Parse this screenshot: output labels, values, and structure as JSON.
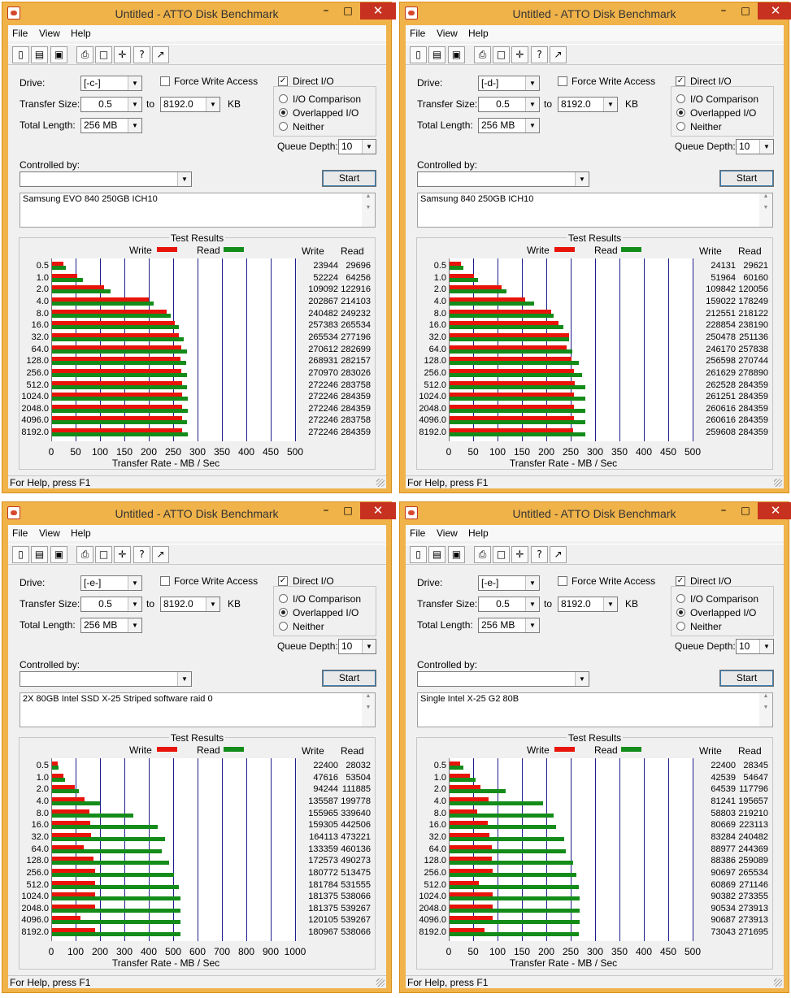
{
  "windows": [
    {
      "title": "Untitled - ATTO Disk Benchmark",
      "menu": [
        "File",
        "View",
        "Help"
      ],
      "drive_label": "Drive:",
      "drive": "[-c-]",
      "force_write_label": "Force Write Access",
      "direct_io_label": "Direct I/O",
      "transfer_size_label": "Transfer Size:",
      "transfer_from": "0.5",
      "transfer_to_label": "to",
      "transfer_to": "8192.0",
      "transfer_unit": "KB",
      "total_length_label": "Total Length:",
      "total_length": "256 MB",
      "io_comparison_label": "I/O Comparison",
      "overlapped_label": "Overlapped I/O",
      "neither_label": "Neither",
      "queue_depth_label": "Queue Depth:",
      "queue_depth": "10",
      "controlled_by_label": "Controlled by:",
      "controlled_by": "",
      "start_label": "Start",
      "notes": "Samsung EVO 840 250GB ICH10",
      "results_title": "Test Results",
      "legend_write": "Write",
      "legend_read": "Read",
      "col_write": "Write",
      "col_read": "Read",
      "xlabel": "Transfer Rate - MB / Sec",
      "status": "For Help, press F1",
      "chart_data": {
        "type": "bar",
        "title": "Test Results",
        "xlabel": "Transfer Rate - MB / Sec",
        "xlim": [
          0,
          500
        ],
        "xticks": [
          "0",
          "50",
          "100",
          "150",
          "200",
          "250",
          "300",
          "350",
          "400",
          "450",
          "500"
        ],
        "categories": [
          "0.5",
          "1.0",
          "2.0",
          "4.0",
          "8.0",
          "16.0",
          "32.0",
          "64.0",
          "128.0",
          "256.0",
          "512.0",
          "1024.0",
          "2048.0",
          "4096.0",
          "8192.0"
        ],
        "series": [
          {
            "name": "Write",
            "color": "#e8140a",
            "values": [
              23944,
              52224,
              109092,
              202867,
              240482,
              257383,
              265534,
              270612,
              268931,
              270970,
              272246,
              272246,
              272246,
              272246,
              272246
            ]
          },
          {
            "name": "Read",
            "color": "#148c1a",
            "values": [
              29696,
              64256,
              122916,
              214103,
              249232,
              265534,
              277196,
              282699,
              282157,
              283026,
              283758,
              284359,
              284359,
              283758,
              284359
            ]
          }
        ]
      }
    },
    {
      "title": "Untitled - ATTO Disk Benchmark",
      "menu": [
        "File",
        "View",
        "Help"
      ],
      "drive_label": "Drive:",
      "drive": "[-d-]",
      "force_write_label": "Force Write Access",
      "direct_io_label": "Direct I/O",
      "transfer_size_label": "Transfer Size:",
      "transfer_from": "0.5",
      "transfer_to_label": "to",
      "transfer_to": "8192.0",
      "transfer_unit": "KB",
      "total_length_label": "Total Length:",
      "total_length": "256 MB",
      "io_comparison_label": "I/O Comparison",
      "overlapped_label": "Overlapped I/O",
      "neither_label": "Neither",
      "queue_depth_label": "Queue Depth:",
      "queue_depth": "10",
      "controlled_by_label": "Controlled by:",
      "controlled_by": "",
      "start_label": "Start",
      "notes": "Samsung 840 250GB ICH10",
      "results_title": "Test Results",
      "legend_write": "Write",
      "legend_read": "Read",
      "col_write": "Write",
      "col_read": "Read",
      "xlabel": "Transfer Rate - MB / Sec",
      "status": "For Help, press F1",
      "chart_data": {
        "type": "bar",
        "title": "Test Results",
        "xlabel": "Transfer Rate - MB / Sec",
        "xlim": [
          0,
          500
        ],
        "xticks": [
          "0",
          "50",
          "100",
          "150",
          "200",
          "250",
          "300",
          "350",
          "400",
          "450",
          "500"
        ],
        "categories": [
          "0.5",
          "1.0",
          "2.0",
          "4.0",
          "8.0",
          "16.0",
          "32.0",
          "64.0",
          "128.0",
          "256.0",
          "512.0",
          "1024.0",
          "2048.0",
          "4096.0",
          "8192.0"
        ],
        "series": [
          {
            "name": "Write",
            "color": "#e8140a",
            "values": [
              24131,
              51964,
              109842,
              159022,
              212551,
              228854,
              250478,
              246170,
              256598,
              261629,
              262528,
              261251,
              260616,
              260616,
              259608
            ]
          },
          {
            "name": "Read",
            "color": "#148c1a",
            "values": [
              29621,
              60160,
              120056,
              178249,
              218122,
              238190,
              251136,
              257838,
              270744,
              278890,
              284359,
              284359,
              284359,
              284359,
              284359
            ]
          }
        ]
      }
    },
    {
      "title": "Untitled - ATTO Disk Benchmark",
      "menu": [
        "File",
        "View",
        "Help"
      ],
      "drive_label": "Drive:",
      "drive": "[-e-]",
      "force_write_label": "Force Write Access",
      "direct_io_label": "Direct I/O",
      "transfer_size_label": "Transfer Size:",
      "transfer_from": "0.5",
      "transfer_to_label": "to",
      "transfer_to": "8192.0",
      "transfer_unit": "KB",
      "total_length_label": "Total Length:",
      "total_length": "256 MB",
      "io_comparison_label": "I/O Comparison",
      "overlapped_label": "Overlapped I/O",
      "neither_label": "Neither",
      "queue_depth_label": "Queue Depth:",
      "queue_depth": "10",
      "controlled_by_label": "Controlled by:",
      "controlled_by": "",
      "start_label": "Start",
      "notes": "2X 80GB Intel SSD X-25 Striped software raid 0",
      "results_title": "Test Results",
      "legend_write": "Write",
      "legend_read": "Read",
      "col_write": "Write",
      "col_read": "Read",
      "xlabel": "Transfer Rate - MB / Sec",
      "status": "For Help, press F1",
      "chart_data": {
        "type": "bar",
        "title": "Test Results",
        "xlabel": "Transfer Rate - MB / Sec",
        "xlim": [
          0,
          1000
        ],
        "xticks": [
          "0",
          "100",
          "200",
          "300",
          "400",
          "500",
          "600",
          "700",
          "800",
          "900",
          "1000"
        ],
        "categories": [
          "0.5",
          "1.0",
          "2.0",
          "4.0",
          "8.0",
          "16.0",
          "32.0",
          "64.0",
          "128.0",
          "256.0",
          "512.0",
          "1024.0",
          "2048.0",
          "4096.0",
          "8192.0"
        ],
        "series": [
          {
            "name": "Write",
            "color": "#e8140a",
            "values": [
              22400,
              47616,
              94244,
              135587,
              155965,
              159305,
              164113,
              133359,
              172573,
              180772,
              181784,
              181375,
              181375,
              120105,
              180967
            ]
          },
          {
            "name": "Read",
            "color": "#148c1a",
            "values": [
              28032,
              53504,
              111885,
              199778,
              339640,
              442506,
              473221,
              460136,
              490273,
              513475,
              531555,
              538066,
              539267,
              539267,
              538066
            ]
          }
        ]
      }
    },
    {
      "title": "Untitled - ATTO Disk Benchmark",
      "menu": [
        "File",
        "View",
        "Help"
      ],
      "drive_label": "Drive:",
      "drive": "[-e-]",
      "force_write_label": "Force Write Access",
      "direct_io_label": "Direct I/O",
      "transfer_size_label": "Transfer Size:",
      "transfer_from": "0.5",
      "transfer_to_label": "to",
      "transfer_to": "8192.0",
      "transfer_unit": "KB",
      "total_length_label": "Total Length:",
      "total_length": "256 MB",
      "io_comparison_label": "I/O Comparison",
      "overlapped_label": "Overlapped I/O",
      "neither_label": "Neither",
      "queue_depth_label": "Queue Depth:",
      "queue_depth": "10",
      "controlled_by_label": "Controlled by:",
      "controlled_by": "",
      "start_label": "Start",
      "notes": "Single Intel X-25 G2 80B",
      "results_title": "Test Results",
      "legend_write": "Write",
      "legend_read": "Read",
      "col_write": "Write",
      "col_read": "Read",
      "xlabel": "Transfer Rate - MB / Sec",
      "status": "For Help, press F1",
      "chart_data": {
        "type": "bar",
        "title": "Test Results",
        "xlabel": "Transfer Rate - MB / Sec",
        "xlim": [
          0,
          500
        ],
        "xticks": [
          "0",
          "50",
          "100",
          "150",
          "200",
          "250",
          "300",
          "350",
          "400",
          "450",
          "500"
        ],
        "categories": [
          "0.5",
          "1.0",
          "2.0",
          "4.0",
          "8.0",
          "16.0",
          "32.0",
          "64.0",
          "128.0",
          "256.0",
          "512.0",
          "1024.0",
          "2048.0",
          "4096.0",
          "8192.0"
        ],
        "series": [
          {
            "name": "Write",
            "color": "#e8140a",
            "values": [
              22400,
              42539,
              64539,
              81241,
              58803,
              80669,
              83284,
              88977,
              88386,
              90697,
              60869,
              90382,
              90534,
              90687,
              73043
            ]
          },
          {
            "name": "Read",
            "color": "#148c1a",
            "values": [
              28345,
              54647,
              117796,
              195657,
              219210,
              223113,
              240482,
              244369,
              259089,
              265534,
              271146,
              273355,
              273913,
              273913,
              271695
            ]
          }
        ]
      }
    }
  ]
}
